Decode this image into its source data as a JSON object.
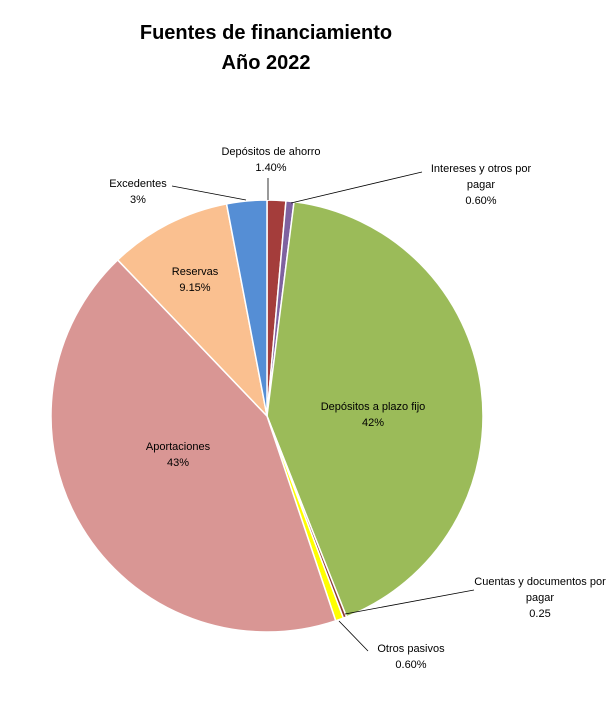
{
  "chart_data": {
    "type": "pie",
    "title": "Fuentes de financiamiento",
    "subtitle": "Año 2022",
    "categories": [
      "Depósitos de ahorro",
      "Intereses y otros por pagar",
      "Depósitos a plazo fijo",
      "Cuentas y documentos por pagar",
      "Otros pasivos",
      "Aportaciones",
      "Reservas",
      "Excedentes"
    ],
    "values": [
      1.4,
      0.6,
      42,
      0.25,
      0.6,
      43,
      9.15,
      3
    ],
    "value_labels": [
      "1.40%",
      "0.60%",
      "42%",
      "0.25",
      "0.60%",
      "43%",
      "9.15%",
      "3%"
    ],
    "colors": [
      "#a43d3b",
      "#7f62a0",
      "#9bbb59",
      "#8b3a36",
      "#ffff00",
      "#d99694",
      "#fac090",
      "#558ed5"
    ]
  }
}
